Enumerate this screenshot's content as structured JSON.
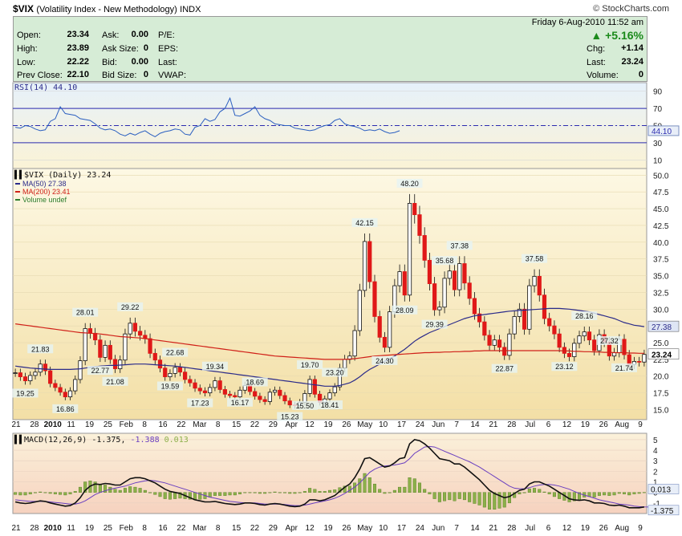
{
  "header": {
    "symbol": "$VIX",
    "name": "(Volatility Index - New Methodology)",
    "exchange": "INDX",
    "copyright": "© StockCharts.com",
    "datetime": "Friday  6-Aug-2010 11:52 am",
    "pct_change": "+5.16%",
    "quote_left": [
      {
        "label": "Open:",
        "value": "23.34"
      },
      {
        "label": "High:",
        "value": "23.89"
      },
      {
        "label": "Low:",
        "value": "22.22"
      },
      {
        "label": "Prev Close:",
        "value": "22.10"
      }
    ],
    "quote_mid": [
      {
        "label": "Ask:",
        "value": "0.00"
      },
      {
        "label": "Ask Size:",
        "value": "0"
      },
      {
        "label": "Bid:",
        "value": "0.00"
      },
      {
        "label": "Bid Size:",
        "value": "0"
      }
    ],
    "quote_mid2": [
      "P/E:",
      "EPS:",
      "Last:",
      "VWAP:"
    ],
    "quote_right": [
      {
        "label": "Chg:",
        "value": "+1.14"
      },
      {
        "label": "Last:",
        "value": "23.24"
      },
      {
        "label": "Volume:",
        "value": "0"
      }
    ],
    "colors": {
      "up": "#1a8a1a",
      "quote_bg": "#d6ecd6"
    }
  },
  "chart_data": [
    {
      "type": "line",
      "panel": "rsi",
      "title": "RSI(14) 44.10",
      "ylim": [
        0,
        100
      ],
      "yticks": [
        "90",
        "70",
        "50",
        "30",
        "10"
      ],
      "levels": [
        70,
        50,
        30
      ],
      "last_label": "44.10",
      "series": [
        {
          "name": "RSI(14)",
          "values": [
            48,
            47,
            50,
            49,
            46,
            44,
            45,
            55,
            58,
            72,
            64,
            63,
            62,
            58,
            57,
            56,
            52,
            47,
            45,
            46,
            44,
            40,
            38,
            41,
            39,
            42,
            44,
            40,
            37,
            41,
            43,
            44,
            46,
            45,
            40,
            39,
            48,
            50,
            58,
            55,
            57,
            66,
            70,
            82,
            62,
            61,
            64,
            67,
            72,
            62,
            58,
            56,
            52,
            51,
            50,
            50,
            47,
            46,
            45,
            44,
            45,
            48,
            50,
            51,
            56,
            58,
            52,
            50,
            49,
            47,
            44,
            45,
            44,
            46,
            43,
            41,
            42,
            44
          ]
        }
      ]
    },
    {
      "type": "candlestick",
      "panel": "price",
      "title": "$VIX (Daily) 23.24",
      "ylim": [
        13.5,
        51
      ],
      "yticks": [
        "50.0",
        "47.5",
        "45.0",
        "42.5",
        "40.0",
        "37.5",
        "35.0",
        "32.5",
        "30.0",
        "27.5",
        "25.0",
        "22.5",
        "20.0",
        "17.5",
        "15.0"
      ],
      "x_labels": [
        "21",
        "28",
        "2010",
        "11",
        "19",
        "25",
        "Feb",
        "8",
        "16",
        "22",
        "Mar",
        "8",
        "15",
        "22",
        "29",
        "Apr",
        "12",
        "19",
        "26",
        "May",
        "10",
        "17",
        "24",
        "Jun",
        "7",
        "14",
        "21",
        "28",
        "Jul",
        "6",
        "12",
        "19",
        "26",
        "Aug",
        "9"
      ],
      "legend": [
        {
          "name": "MA(50) 27.38",
          "color": "#2b2b8a"
        },
        {
          "name": "MA(200) 23.41",
          "color": "#d02018"
        },
        {
          "name": "Volume undef",
          "color": "#2e7d2e"
        }
      ],
      "close": [
        20.5,
        19.9,
        19.3,
        20.1,
        20.6,
        21.8,
        20.8,
        18.9,
        18.3,
        17.6,
        16.9,
        17.8,
        19.5,
        22.3,
        27.1,
        26.4,
        25.4,
        22.8,
        24.6,
        22.5,
        21.1,
        22.4,
        26.3,
        27.9,
        26.7,
        26.1,
        25.6,
        23.4,
        22.4,
        21.2,
        19.9,
        20.4,
        21.3,
        20.6,
        19.5,
        19.0,
        18.2,
        17.8,
        17.5,
        18.3,
        19.3,
        18.0,
        17.3,
        17.1,
        16.9,
        17.9,
        18.6,
        17.7,
        17.0,
        16.5,
        16.2,
        17.6,
        17.9,
        17.1,
        16.3,
        15.7,
        15.6,
        16.1,
        17.4,
        19.5,
        17.3,
        16.1,
        16.6,
        17.5,
        18.4,
        21.2,
        22.5,
        23.0,
        26.8,
        32.8,
        40.1,
        34.1,
        28.9,
        25.8,
        24.3,
        29.6,
        33.5,
        35.6,
        32.1,
        45.8,
        44.1,
        41.0,
        37.3,
        33.8,
        29.9,
        30.3,
        34.6,
        35.7,
        32.9,
        36.8,
        33.9,
        31.6,
        29.3,
        28.1,
        26.1,
        24.6,
        25.4,
        24.3,
        23.1,
        26.3,
        28.9,
        30.0,
        27.0,
        33.5,
        34.9,
        32.1,
        28.6,
        27.5,
        26.3,
        24.3,
        23.4,
        22.9,
        24.9,
        26.0,
        26.6,
        25.4,
        23.8,
        26.2,
        25.1,
        23.0,
        23.5,
        25.5,
        23.2,
        21.7,
        22.2,
        22.1,
        23.24
      ],
      "dates_note": "",
      "ma50": [
        21.5,
        21.4,
        21.3,
        21.2,
        21.15,
        21.1,
        21.05,
        21.0,
        21.0,
        21.0,
        21.0,
        21.0,
        21.05,
        21.1,
        21.2,
        21.3,
        21.4,
        21.5,
        21.55,
        21.6,
        21.6,
        21.65,
        21.7,
        21.75,
        21.8,
        21.8,
        21.8,
        21.75,
        21.7,
        21.65,
        21.6,
        21.55,
        21.5,
        21.4,
        21.3,
        21.2,
        21.1,
        21.0,
        20.9,
        20.8,
        20.7,
        20.6,
        20.5,
        20.4,
        20.3,
        20.2,
        20.1,
        20.0,
        19.9,
        19.8,
        19.7,
        19.6,
        19.5,
        19.4,
        19.3,
        19.2,
        19.1,
        19.0,
        18.9,
        18.8,
        18.7,
        18.6,
        18.5,
        18.5,
        18.5,
        18.6,
        18.8,
        19.0,
        19.4,
        19.9,
        20.5,
        21.0,
        21.4,
        21.8,
        22.2,
        22.6,
        23.0,
        23.5,
        24.0,
        24.6,
        25.2,
        25.7,
        26.1,
        26.5,
        26.8,
        27.1,
        27.4,
        27.7,
        28.0,
        28.3,
        28.6,
        28.8,
        29.0,
        29.1,
        29.2,
        29.3,
        29.4,
        29.5,
        29.6,
        29.7,
        29.75,
        29.8,
        29.85,
        29.9,
        29.95,
        30.0,
        30.05,
        30.1,
        30.1,
        30.1,
        30.05,
        30.0,
        29.9,
        29.8,
        29.7,
        29.6,
        29.4,
        29.2,
        29.0,
        28.8,
        28.6,
        28.3,
        28.0,
        27.8,
        27.6,
        27.5,
        27.38
      ],
      "ma200": [
        27.8,
        27.7,
        27.6,
        27.5,
        27.4,
        27.3,
        27.2,
        27.1,
        27.0,
        26.9,
        26.8,
        26.7,
        26.6,
        26.5,
        26.45,
        26.4,
        26.35,
        26.3,
        26.2,
        26.1,
        26.0,
        25.9,
        25.85,
        25.8,
        25.75,
        25.7,
        25.6,
        25.5,
        25.4,
        25.3,
        25.2,
        25.1,
        25.0,
        24.9,
        24.8,
        24.7,
        24.6,
        24.5,
        24.4,
        24.3,
        24.2,
        24.1,
        24.0,
        23.9,
        23.8,
        23.7,
        23.6,
        23.5,
        23.4,
        23.3,
        23.2,
        23.1,
        23.0,
        22.95,
        22.9,
        22.85,
        22.8,
        22.75,
        22.7,
        22.65,
        22.6,
        22.55,
        22.5,
        22.5,
        22.5,
        22.5,
        22.5,
        22.55,
        22.6,
        22.7,
        22.8,
        22.9,
        23.0,
        23.05,
        23.1,
        23.15,
        23.2,
        23.25,
        23.3,
        23.35,
        23.4,
        23.45,
        23.5,
        23.5,
        23.55,
        23.55,
        23.6,
        23.6,
        23.65,
        23.65,
        23.7,
        23.7,
        23.75,
        23.75,
        23.8,
        23.8,
        23.8,
        23.8,
        23.8,
        23.8,
        23.8,
        23.8,
        23.8,
        23.8,
        23.8,
        23.8,
        23.8,
        23.8,
        23.8,
        23.8,
        23.75,
        23.75,
        23.7,
        23.7,
        23.65,
        23.65,
        23.6,
        23.6,
        23.55,
        23.55,
        23.5,
        23.5,
        23.5,
        23.45,
        23.45,
        23.41,
        23.41
      ],
      "annotations": [
        {
          "i": 2,
          "text": "19.25",
          "pos": "below"
        },
        {
          "i": 5,
          "text": "21.83",
          "pos": "above"
        },
        {
          "i": 10,
          "text": "16.86",
          "pos": "below"
        },
        {
          "i": 14,
          "text": "28.01",
          "pos": "above"
        },
        {
          "i": 17,
          "text": "22.77",
          "pos": "below"
        },
        {
          "i": 20,
          "text": "21.08",
          "pos": "below"
        },
        {
          "i": 23,
          "text": "29.22",
          "pos": "above"
        },
        {
          "i": 31,
          "text": "19.59",
          "pos": "below"
        },
        {
          "i": 32,
          "text": "22.68",
          "pos": "above"
        },
        {
          "i": 37,
          "text": "17.23",
          "pos": "below"
        },
        {
          "i": 40,
          "text": "19.34",
          "pos": "above"
        },
        {
          "i": 45,
          "text": "16.17",
          "pos": "below"
        },
        {
          "i": 48,
          "text": "18.69",
          "pos": "above"
        },
        {
          "i": 55,
          "text": "15.23",
          "pos": "below"
        },
        {
          "i": 58,
          "text": "15.50",
          "pos": "below"
        },
        {
          "i": 59,
          "text": "19.70",
          "pos": "above"
        },
        {
          "i": 64,
          "text": "23.20",
          "pos": "above"
        },
        {
          "i": 63,
          "text": "18.41",
          "pos": "below"
        },
        {
          "i": 70,
          "text": "42.15",
          "pos": "above"
        },
        {
          "i": 74,
          "text": "24.30",
          "pos": "below"
        },
        {
          "i": 78,
          "text": "28.09",
          "pos": "below"
        },
        {
          "i": 79,
          "text": "48.20",
          "pos": "above"
        },
        {
          "i": 84,
          "text": "29.39",
          "pos": "below"
        },
        {
          "i": 86,
          "text": "35.68",
          "pos": "above"
        },
        {
          "i": 89,
          "text": "37.38",
          "pos": "above"
        },
        {
          "i": 98,
          "text": "22.87",
          "pos": "below"
        },
        {
          "i": 104,
          "text": "37.58",
          "pos": "above"
        },
        {
          "i": 110,
          "text": "23.12",
          "pos": "below"
        },
        {
          "i": 114,
          "text": "28.16",
          "pos": "above"
        },
        {
          "i": 119,
          "text": "27.32",
          "pos": "above"
        },
        {
          "i": 122,
          "text": "21.74",
          "pos": "below"
        }
      ],
      "side_labels": [
        {
          "text": "27.38",
          "value": 27.38,
          "color": "#2b2b8a",
          "bg": "#dfe6f5"
        },
        {
          "text": "23.24",
          "value": 23.24,
          "color": "#000",
          "bg": "#ffffff"
        }
      ]
    },
    {
      "type": "line",
      "panel": "macd",
      "title": "MACD(12,26,9) -1.375, -1.388, 0.013",
      "title_parts": [
        "MACD(12,26,9) -1.375, ",
        "-1.388",
        " 0.013"
      ],
      "ylim": [
        -2,
        5.6
      ],
      "yticks": [
        "5",
        "4",
        "3",
        "2",
        "1",
        "0",
        "-1"
      ],
      "side_labels": [
        {
          "text": "0.013",
          "value": 0.013
        },
        {
          "text": "-1.375",
          "value": -1.375
        }
      ],
      "series": [
        {
          "name": "MACD",
          "values": [
            -0.9,
            -1.0,
            -1.05,
            -1.0,
            -0.9,
            -0.8,
            -0.85,
            -1.0,
            -1.1,
            -1.2,
            -1.3,
            -1.25,
            -1.0,
            -0.5,
            0.2,
            0.6,
            0.8,
            0.75,
            0.85,
            0.8,
            0.7,
            0.7,
            1.0,
            1.3,
            1.4,
            1.4,
            1.3,
            1.1,
            0.9,
            0.6,
            0.3,
            0.1,
            0.0,
            -0.1,
            -0.3,
            -0.5,
            -0.7,
            -0.8,
            -0.9,
            -0.9,
            -0.85,
            -0.95,
            -1.05,
            -1.1,
            -1.15,
            -1.1,
            -1.0,
            -1.0,
            -1.05,
            -1.15,
            -1.2,
            -1.1,
            -1.05,
            -1.1,
            -1.2,
            -1.3,
            -1.35,
            -1.3,
            -1.1,
            -0.7,
            -0.7,
            -0.8,
            -0.7,
            -0.5,
            -0.3,
            0.1,
            0.5,
            0.8,
            1.4,
            2.2,
            3.2,
            3.3,
            3.0,
            2.7,
            2.4,
            2.5,
            2.8,
            3.2,
            3.3,
            4.6,
            5.0,
            4.9,
            4.6,
            4.2,
            3.7,
            3.2,
            3.1,
            3.0,
            2.7,
            2.7,
            2.4,
            2.0,
            1.6,
            1.2,
            0.7,
            0.2,
            -0.1,
            -0.3,
            -0.5,
            -0.4,
            -0.1,
            0.2,
            0.3,
            0.8,
            1.0,
            1.0,
            0.8,
            0.6,
            0.3,
            0.0,
            -0.3,
            -0.6,
            -0.7,
            -0.75,
            -0.7,
            -0.8,
            -1.0,
            -1.0,
            -1.05,
            -1.2,
            -1.25,
            -1.2,
            -1.3,
            -1.45,
            -1.45,
            -1.45,
            -1.375
          ]
        },
        {
          "name": "Signal",
          "values": [
            -0.7,
            -0.75,
            -0.8,
            -0.85,
            -0.85,
            -0.85,
            -0.85,
            -0.9,
            -0.95,
            -1.0,
            -1.05,
            -1.1,
            -1.1,
            -1.0,
            -0.8,
            -0.5,
            -0.2,
            0.0,
            0.15,
            0.3,
            0.4,
            0.5,
            0.6,
            0.75,
            0.9,
            1.0,
            1.1,
            1.15,
            1.1,
            1.0,
            0.9,
            0.75,
            0.6,
            0.45,
            0.3,
            0.15,
            0.0,
            -0.15,
            -0.3,
            -0.45,
            -0.55,
            -0.65,
            -0.75,
            -0.85,
            -0.9,
            -0.95,
            -1.0,
            -1.0,
            -1.0,
            -1.05,
            -1.1,
            -1.1,
            -1.1,
            -1.1,
            -1.15,
            -1.2,
            -1.25,
            -1.25,
            -1.2,
            -1.1,
            -1.0,
            -0.9,
            -0.8,
            -0.7,
            -0.55,
            -0.35,
            -0.1,
            0.2,
            0.5,
            0.9,
            1.4,
            1.9,
            2.2,
            2.4,
            2.5,
            2.55,
            2.6,
            2.7,
            2.8,
            3.2,
            3.7,
            4.0,
            4.3,
            4.35,
            4.3,
            4.1,
            3.9,
            3.7,
            3.5,
            3.3,
            3.1,
            2.9,
            2.65,
            2.4,
            2.1,
            1.8,
            1.5,
            1.2,
            0.9,
            0.6,
            0.4,
            0.35,
            0.35,
            0.45,
            0.6,
            0.7,
            0.75,
            0.75,
            0.7,
            0.6,
            0.45,
            0.3,
            0.1,
            -0.1,
            -0.25,
            -0.4,
            -0.55,
            -0.7,
            -0.8,
            -0.9,
            -1.0,
            -1.1,
            -1.15,
            -1.2,
            -1.3,
            -1.35,
            -1.38,
            -1.388
          ]
        }
      ]
    }
  ]
}
